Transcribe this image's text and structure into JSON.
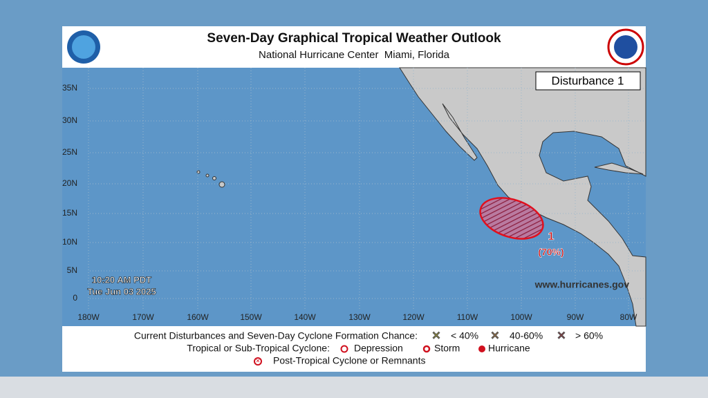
{
  "header": {
    "title": "Seven-Day Graphical Tropical Weather Outlook",
    "subtitle": "National Hurricane Center  Miami, Florida"
  },
  "map": {
    "panel_label": "Disturbance 1",
    "latitude_labels": [
      "35N",
      "30N",
      "25N",
      "20N",
      "15N",
      "10N",
      "5N",
      "0"
    ],
    "longitude_labels": [
      "180W",
      "170W",
      "160W",
      "150W",
      "140W",
      "130W",
      "120W",
      "110W",
      "100W",
      "90W",
      "80W"
    ],
    "timestamp": [
      "10:20 AM PDT",
      "Tue Jun 03 2025"
    ],
    "website": "www.hurricanes.gov",
    "disturbances": [
      {
        "id": "1",
        "chance": "(70%)"
      }
    ]
  },
  "legend": {
    "formation_chance": "Current Disturbances and Seven-Day Cyclone Formation Chance:",
    "low": "< 40%",
    "medium": "40-60%",
    "high": "> 60%",
    "cyclone_types": "Tropical or Sub-Tropical Cyclone:",
    "depression": "Depression",
    "storm": "Storm",
    "hurricane": "Hurricane",
    "post_tropical": "Post-Tropical Cyclone or Remnants"
  }
}
